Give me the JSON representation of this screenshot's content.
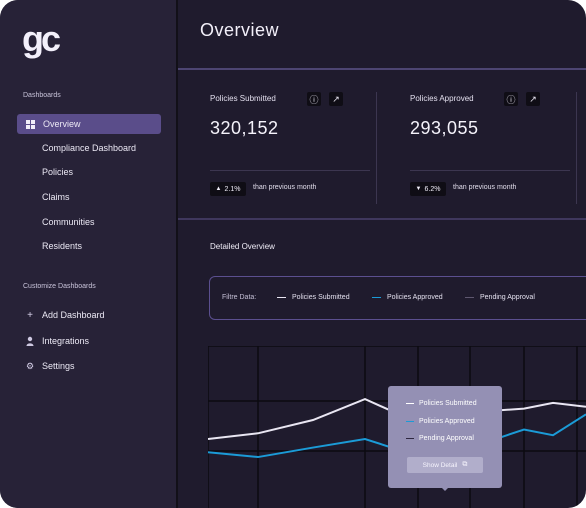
{
  "brand": {
    "logo_text": "gc"
  },
  "sidebar": {
    "dashboards_title": "Dashboards",
    "items": [
      {
        "label": "Overview",
        "active": true,
        "icon": "grid-icon"
      },
      {
        "label": "Compliance Dashboard"
      },
      {
        "label": "Policies"
      },
      {
        "label": "Claims"
      },
      {
        "label": "Communities"
      },
      {
        "label": "Residents"
      }
    ],
    "customize_title": "Customize Dashboards",
    "custom_items": [
      {
        "label": "Add Dashboard",
        "icon": "plus-icon"
      },
      {
        "label": "Integrations",
        "icon": "user-icon"
      },
      {
        "label": "Settings",
        "icon": "gear-icon"
      }
    ]
  },
  "main": {
    "title": "Overview",
    "stats": [
      {
        "label": "Policies Submitted",
        "value": "320,152",
        "trend": "2.1%",
        "trend_dir": "up",
        "trend_text": "than previous month"
      },
      {
        "label": "Policies Approved",
        "value": "293,055",
        "trend": "6.2%",
        "trend_dir": "down",
        "trend_text": "than previous month"
      }
    ],
    "detail_title": "Detailed Overview",
    "filter": {
      "label": "Filtre Data:",
      "legend": [
        {
          "name": "Policies Submitted",
          "color": "#e9e6f2"
        },
        {
          "name": "Policies Approved",
          "color": "#1b9bd7"
        },
        {
          "name": "Pending Approval",
          "color": "#5e576f"
        }
      ]
    }
  },
  "tooltip": {
    "rows": [
      {
        "label": "Policies Submitted",
        "color": "#ffffff"
      },
      {
        "label": "Policies Approved",
        "color": "#1b9bd7"
      },
      {
        "label": "Pending Approval",
        "color": "#2e2740"
      }
    ],
    "button": "Show Detail"
  },
  "chart_data": {
    "type": "line",
    "series": [
      {
        "name": "Policies Submitted",
        "values": [
          20,
          26,
          40,
          62,
          37,
          48,
          52,
          58,
          54
        ]
      },
      {
        "name": "Policies Approved",
        "values": [
          6,
          1,
          11,
          20,
          2,
          11,
          30,
          24,
          46
        ]
      }
    ],
    "colors": [
      "#e9e6f2",
      "#1b9bd7"
    ],
    "grid": true
  }
}
